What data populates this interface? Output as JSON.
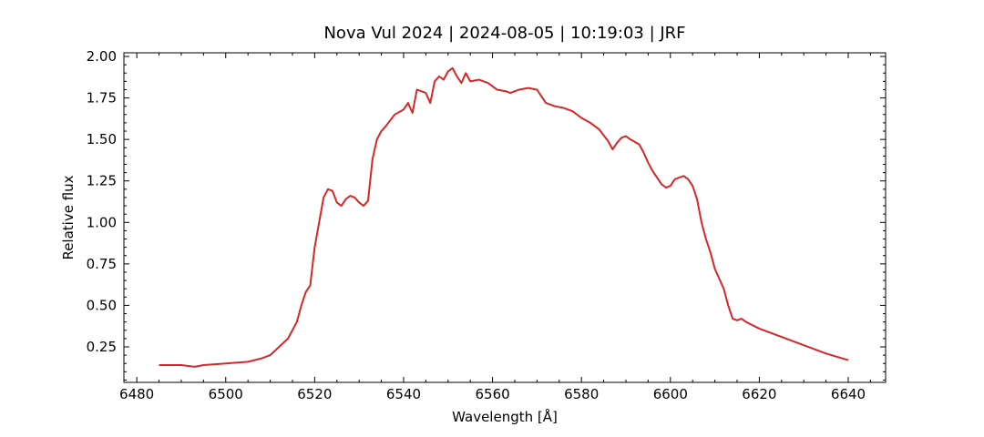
{
  "chart_data": {
    "type": "line",
    "title": "Nova Vul 2024 | 2024-08-05 | 10:19:03 | JRF",
    "x_label": "Wavelength [Å]",
    "y_label": "Relative flux",
    "color": "#d62728",
    "xlim": [
      6477.1,
      6648.4
    ],
    "ylim": [
      0.036,
      2.022
    ],
    "xticks": [
      6480,
      6500,
      6520,
      6540,
      6560,
      6580,
      6600,
      6620,
      6640
    ],
    "yticks": [
      0.25,
      {
        "value": 0.5,
        "label": "0.50"
      },
      0.75,
      {
        "value": 1,
        "label": "1.00"
      },
      1.25,
      {
        "value": 1.5,
        "label": "1.50"
      },
      1.75,
      {
        "value": 2,
        "label": "2.00"
      }
    ],
    "xminorticks": [
      6485,
      6490,
      6495,
      6505,
      6510,
      6515,
      6525,
      6530,
      6535,
      6545,
      6550,
      6555,
      6565,
      6570,
      6575,
      6585,
      6590,
      6595,
      6605,
      6610,
      6615,
      6625,
      6630,
      6635,
      6645
    ],
    "yminorticks": [
      0.05,
      0.1,
      0.15,
      0.2,
      0.3,
      0.35,
      0.4,
      0.45,
      0.55,
      0.6,
      0.65,
      0.7,
      0.8,
      0.85,
      0.9,
      0.95,
      1.05,
      1.1,
      1.15,
      1.2,
      1.3,
      1.35,
      1.4,
      1.45,
      1.55,
      1.6,
      1.65,
      1.7,
      1.8,
      1.85,
      1.9,
      1.95
    ],
    "x": [
      6485,
      6490,
      6493,
      6495,
      6500,
      6505,
      6508,
      6510,
      6512,
      6514,
      6516,
      6517,
      6518,
      6519,
      6520,
      6521,
      6522,
      6523,
      6524,
      6525,
      6526,
      6527,
      6528,
      6529,
      6530,
      6531,
      6532,
      6533,
      6534,
      6535,
      6536,
      6538,
      6540,
      6541,
      6542,
      6543,
      6545,
      6546,
      6547,
      6548,
      6549,
      6550,
      6551,
      6552,
      6553,
      6554,
      6555,
      6557,
      6559,
      6561,
      6563,
      6564,
      6566,
      6568,
      6570,
      6571,
      6572,
      6574,
      6576,
      6578,
      6580,
      6582,
      6584,
      6586,
      6587,
      6588,
      6589,
      6590,
      6591,
      6593,
      6594,
      6595,
      6596,
      6597,
      6598,
      6599,
      6600,
      6601,
      6602,
      6603,
      6604,
      6605,
      6606,
      6607,
      6608,
      6609,
      6610,
      6611,
      6612,
      6613,
      6614,
      6615,
      6616,
      6617,
      6620,
      6625,
      6630,
      6635,
      6640
    ],
    "values": [
      0.14,
      0.14,
      0.13,
      0.14,
      0.15,
      0.16,
      0.18,
      0.2,
      0.25,
      0.3,
      0.4,
      0.5,
      0.58,
      0.62,
      0.85,
      1.0,
      1.15,
      1.2,
      1.19,
      1.12,
      1.1,
      1.14,
      1.16,
      1.15,
      1.12,
      1.1,
      1.13,
      1.38,
      1.5,
      1.55,
      1.58,
      1.65,
      1.68,
      1.72,
      1.66,
      1.8,
      1.78,
      1.72,
      1.85,
      1.88,
      1.86,
      1.91,
      1.93,
      1.88,
      1.84,
      1.9,
      1.85,
      1.86,
      1.84,
      1.8,
      1.79,
      1.78,
      1.8,
      1.81,
      1.8,
      1.76,
      1.72,
      1.7,
      1.69,
      1.67,
      1.63,
      1.6,
      1.56,
      1.49,
      1.44,
      1.48,
      1.51,
      1.52,
      1.5,
      1.47,
      1.42,
      1.36,
      1.31,
      1.27,
      1.23,
      1.21,
      1.22,
      1.26,
      1.27,
      1.28,
      1.26,
      1.22,
      1.14,
      1.0,
      0.9,
      0.82,
      0.72,
      0.66,
      0.6,
      0.5,
      0.42,
      0.41,
      0.42,
      0.4,
      0.36,
      0.31,
      0.26,
      0.21,
      0.17
    ]
  }
}
